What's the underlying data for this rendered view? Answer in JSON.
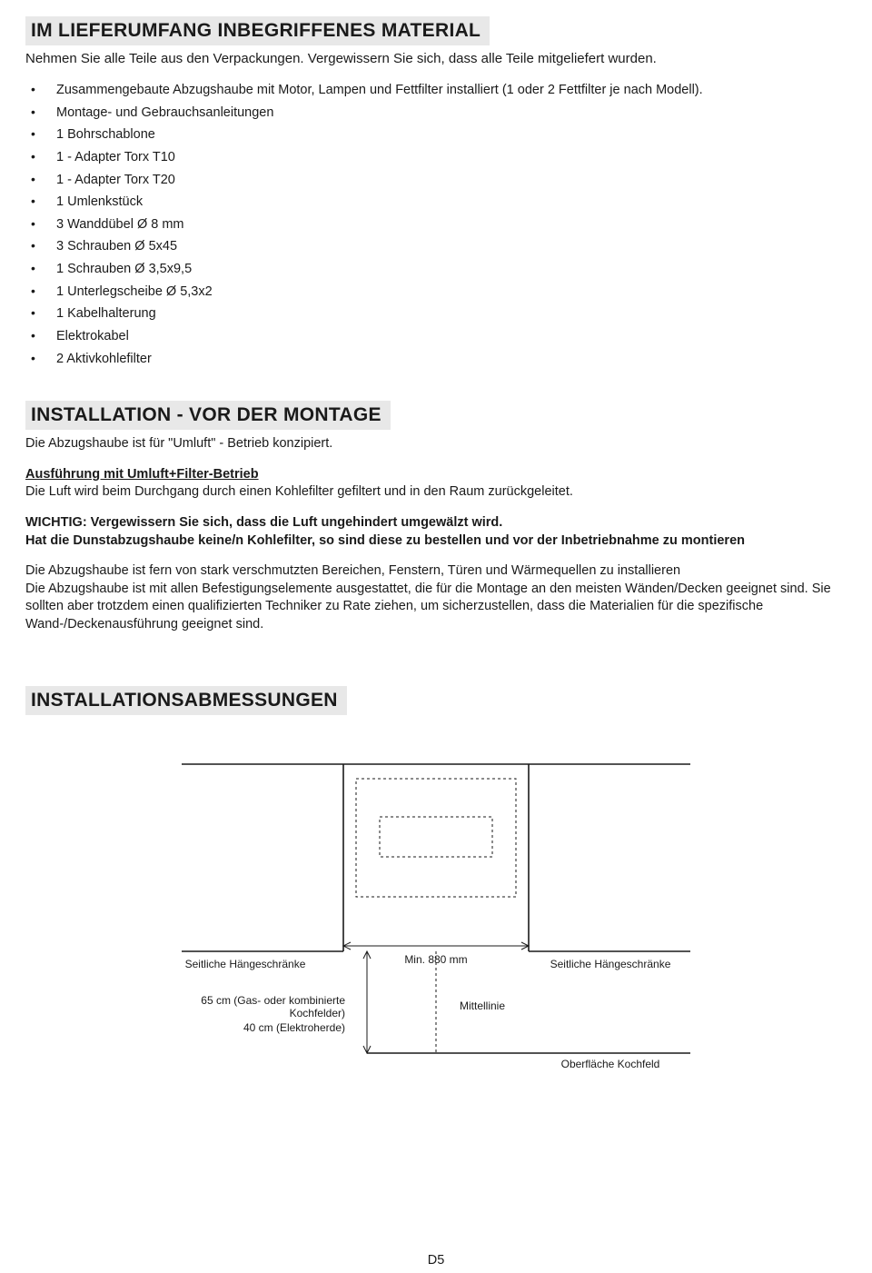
{
  "section1": {
    "title": "IM LIEFERUMFANG INBEGRIFFENES MATERIAL",
    "intro": "Nehmen Sie alle Teile aus den Verpackungen. Vergewissern Sie sich, dass alle Teile mitgeliefert wurden.",
    "items": [
      "Zusammengebaute Abzugshaube mit Motor, Lampen und Fettfilter installiert (1 oder 2 Fettfilter je nach Modell).",
      "Montage- und Gebrauchsanleitungen",
      "1 Bohrschablone",
      "1 - Adapter Torx T10",
      "1 - Adapter Torx T20",
      "1 Umlenkstück",
      "3 Wanddübel Ø 8 mm",
      "3 Schrauben Ø 5x45",
      "1 Schrauben Ø 3,5x9,5",
      "1 Unterlegscheibe Ø 5,3x2",
      "1 Kabelhalterung",
      "Elektrokabel",
      "2 Aktivkohlefilter"
    ]
  },
  "section2": {
    "title": "INSTALLATION - VOR DER MONTAGE",
    "p1": "Die Abzugshaube ist für \"Umluft\" - Betrieb konzipiert.",
    "sub_heading": "Ausführung mit Umluft+Filter-Betrieb",
    "p2": "Die Luft wird beim Durchgang durch einen Kohlefilter gefiltert und in den Raum zurückgeleitet.",
    "p3a": "WICHTIG: Vergewissern Sie sich, dass die Luft ungehindert umgewälzt wird.",
    "p3b": "Hat die Dunstabzugshaube keine/n Kohlefilter, so sind diese zu bestellen und vor der Inbetriebnahme zu montieren",
    "p4": "Die Abzugshaube ist fern von stark verschmutzten Bereichen, Fenstern, Türen und Wärmequellen zu installieren",
    "p5": "Die Abzugshaube ist mit allen Befestigungselemente ausgestattet, die für die Montage an den meisten Wänden/Decken geeignet sind. Sie sollten aber trotzdem einen qualifizierten Techniker zu Rate ziehen, um sicherzustellen, dass die Materialien für die spezifische Wand-/Deckenausführung geeignet sind."
  },
  "section3": {
    "title": "INSTALLATIONSABMESSUNGEN",
    "diagram": {
      "label_left": "Seitliche Hängeschränke",
      "label_right": "Seitliche Hängeschränke",
      "label_min": "Min. 880 mm",
      "label_center": "Mittellinie",
      "label_gas": "65 cm (Gas- oder kombinierte Kochfelder)",
      "label_elec": "40 cm (Elektroherde)",
      "label_surf": "Oberfläche Kochfeld",
      "stroke": "#1a1a1a",
      "stroke_width": 1.6,
      "thin_width": 1,
      "dash": "3,3",
      "font_small": 12
    }
  },
  "footer": "D5"
}
